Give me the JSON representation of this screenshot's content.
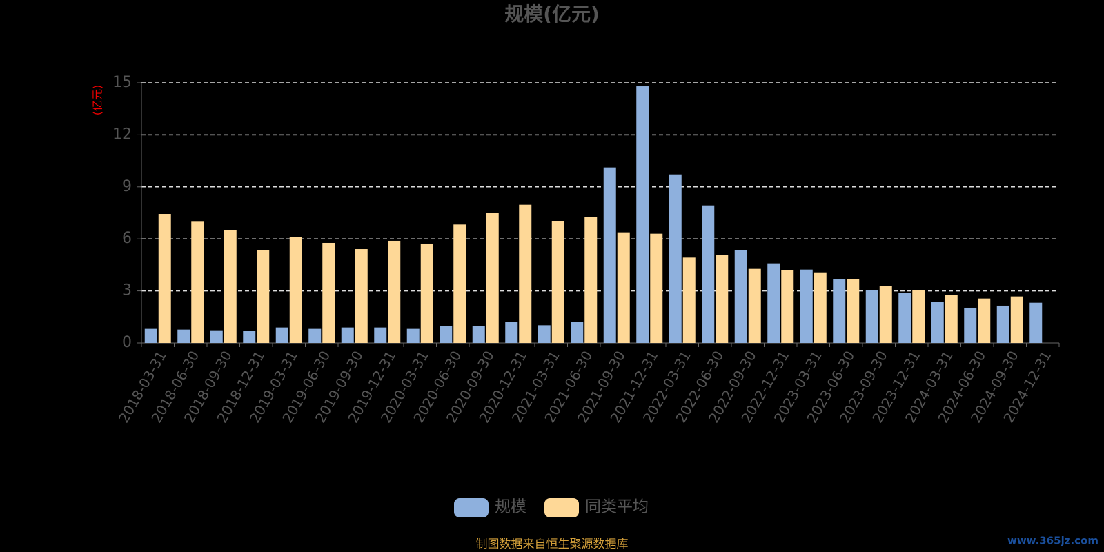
{
  "chart_data": {
    "type": "bar",
    "title": "规模(亿元)",
    "y_unit": "(亿元)",
    "categories": [
      "2018-03-31",
      "2018-06-30",
      "2018-09-30",
      "2018-12-31",
      "2019-03-31",
      "2019-06-30",
      "2019-09-30",
      "2019-12-31",
      "2020-03-31",
      "2020-06-30",
      "2020-09-30",
      "2020-12-31",
      "2021-03-31",
      "2021-06-30",
      "2021-09-30",
      "2021-12-31",
      "2022-03-31",
      "2022-06-30",
      "2022-09-30",
      "2022-12-31",
      "2023-03-31",
      "2023-06-30",
      "2023-09-30",
      "2023-12-31",
      "2024-03-31",
      "2024-06-30",
      "2024-09-30",
      "2024-12-31"
    ],
    "series": [
      {
        "name": "规模",
        "color": "#8eb0dd",
        "values": [
          0.81,
          0.77,
          0.73,
          0.69,
          0.89,
          0.81,
          0.89,
          0.89,
          0.81,
          0.98,
          0.98,
          1.22,
          1.02,
          1.22,
          10.12,
          14.8,
          9.72,
          7.93,
          5.37,
          4.59,
          4.23,
          3.66,
          3.05,
          2.89,
          2.36,
          2.03,
          2.15,
          2.32
        ]
      },
      {
        "name": "同类平均",
        "color": "#fed897",
        "values": [
          7.44,
          6.99,
          6.5,
          5.37,
          6.1,
          5.77,
          5.41,
          5.89,
          5.73,
          6.83,
          7.52,
          7.97,
          7.03,
          7.28,
          6.38,
          6.3,
          4.92,
          5.08,
          4.27,
          4.19,
          4.07,
          3.7,
          3.29,
          3.05,
          2.76,
          2.56,
          2.68,
          null
        ]
      }
    ],
    "ylim": [
      0,
      15
    ],
    "yticks": [
      0,
      3,
      6,
      9,
      12,
      15
    ],
    "grid": true,
    "source": "制图数据来自恒生聚源数据库",
    "watermark": "www.365jz.com"
  }
}
